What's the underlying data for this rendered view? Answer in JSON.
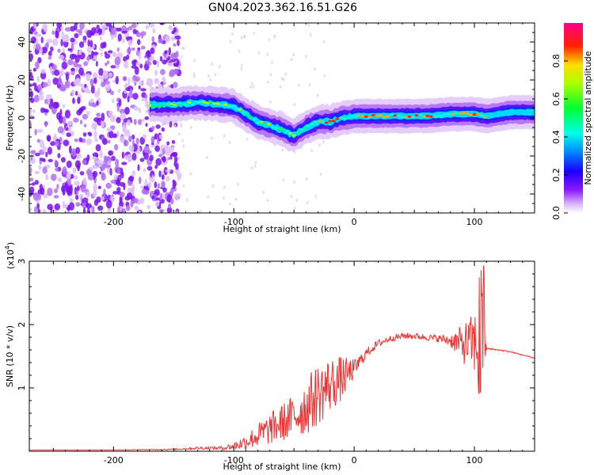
{
  "figure_title": "GN04.2023.362.16.51.G26",
  "chart_data": [
    {
      "type": "heatmap",
      "title": "GN04.2023.362.16.51.G26",
      "xlabel": "Height of straight line (km)",
      "ylabel": "Frequency (Hz)",
      "xlim": [
        -270,
        150
      ],
      "ylim": [
        -50,
        50
      ],
      "x_ticks": [
        -200,
        -100,
        0,
        100
      ],
      "y_ticks": [
        -40,
        -20,
        0,
        20,
        40
      ],
      "colorbar": {
        "label": "Normalized spectral amplitude",
        "range": [
          0,
          1
        ],
        "ticks": [
          0.0,
          0.2,
          0.4,
          0.6,
          0.8
        ],
        "colormap": [
          "#ffffff",
          "#d7a8f5",
          "#8000ff",
          "#0000ff",
          "#00ffff",
          "#00ff00",
          "#ffff00",
          "#ff0000",
          "#ff0080"
        ]
      },
      "ridge": {
        "description_x": [
          -170,
          -150,
          -130,
          -110,
          -100,
          -90,
          -80,
          -70,
          -60,
          -55,
          -50,
          -45,
          -40,
          -30,
          -20,
          -10,
          0,
          20,
          40,
          60,
          80,
          100,
          110,
          130,
          150
        ],
        "frequency_hz": [
          7,
          7,
          8,
          7,
          6,
          2,
          -2,
          -4,
          -6,
          -8,
          -9,
          -7,
          -5,
          -2,
          -2,
          0,
          1,
          1,
          1,
          1,
          2,
          2,
          1,
          3,
          3
        ]
      },
      "noise_region_x": [
        -270,
        -150
      ]
    },
    {
      "type": "line",
      "title": "",
      "xlabel": "Height of straight line (km)",
      "ylabel": "SNR (10 * v/v)",
      "y_scale_label": "(x10",
      "y_scale_exponent": "4",
      "y_scale_suffix": ")",
      "xlim": [
        -270,
        150
      ],
      "ylim": [
        0,
        3
      ],
      "x_ticks": [
        -200,
        -100,
        0,
        100
      ],
      "y_ticks": [
        1,
        2,
        3
      ],
      "series": [
        {
          "name": "SNR",
          "color": "#ee3333",
          "x": [
            -270,
            -250,
            -200,
            -150,
            -130,
            -110,
            -100,
            -90,
            -80,
            -70,
            -60,
            -50,
            -40,
            -30,
            -20,
            -10,
            0,
            10,
            20,
            30,
            40,
            50,
            60,
            70,
            80,
            90,
            100,
            105,
            110,
            120,
            130,
            140,
            150
          ],
          "y": [
            0.02,
            0.02,
            0.02,
            0.03,
            0.05,
            0.05,
            0.08,
            0.15,
            0.25,
            0.35,
            0.45,
            0.55,
            0.7,
            0.9,
            1.05,
            1.15,
            1.3,
            1.55,
            1.7,
            1.78,
            1.82,
            1.82,
            1.8,
            1.78,
            1.75,
            1.7,
            1.7,
            1.65,
            1.62,
            1.6,
            1.57,
            1.52,
            1.47
          ],
          "jitter": [
            0,
            0,
            0,
            0.01,
            0.02,
            0.03,
            0.06,
            0.12,
            0.2,
            0.25,
            0.3,
            0.35,
            0.45,
            0.5,
            0.45,
            0.35,
            0.15,
            0.08,
            0.06,
            0.05,
            0.05,
            0.05,
            0.05,
            0.06,
            0.1,
            0.3,
            0.5,
            0.9,
            0.02,
            0.01,
            0.01,
            0.01,
            0.01
          ]
        }
      ]
    }
  ]
}
